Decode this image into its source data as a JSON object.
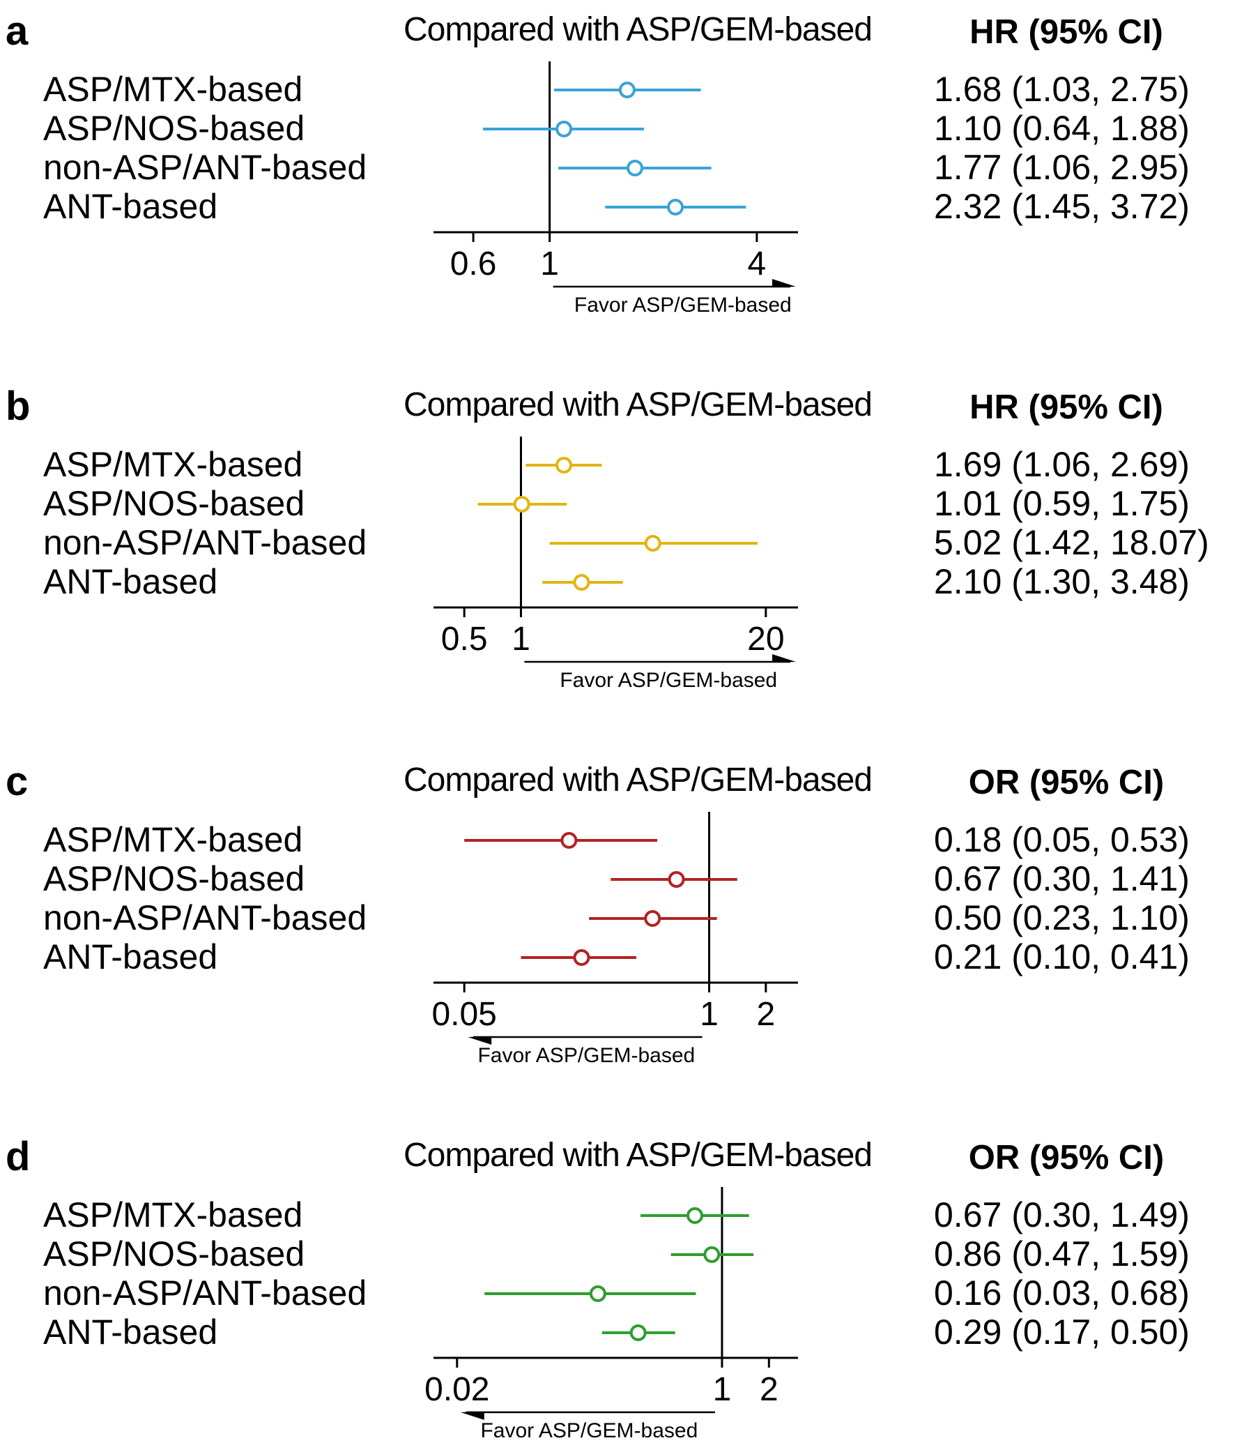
{
  "chart_data": [
    {
      "type": "forest",
      "panel_label": "a",
      "title": "Compared with ASP/GEM-based",
      "stat_header": "HR (95% CI)",
      "color": "#3aa3d6",
      "scale": "log",
      "xlim": [
        0.5,
        4.8
      ],
      "ticks": [
        0.6,
        1,
        4
      ],
      "tick_labels": [
        "0.6",
        "1",
        "4"
      ],
      "reference": 1,
      "favor_label": "Favor ASP/GEM-based",
      "favor_direction": "right",
      "categories": [
        "ASP/MTX-based",
        "ASP/NOS-based",
        "non-ASP/ANT-based",
        "ANT-based"
      ],
      "estimates": [
        1.68,
        1.1,
        1.77,
        2.32
      ],
      "lower": [
        1.03,
        0.64,
        1.06,
        1.45
      ],
      "upper": [
        2.75,
        1.88,
        2.95,
        3.72
      ],
      "stat_text": [
        "1.68 (1.03, 2.75)",
        "1.10 (0.64, 1.88)",
        "1.77 (1.06, 2.95)",
        "2.32 (1.45, 3.72)"
      ]
    },
    {
      "type": "forest",
      "panel_label": "b",
      "title": "Compared with ASP/GEM-based",
      "stat_header": "HR (95% CI)",
      "color": "#e3b412",
      "scale": "log",
      "xlim": [
        0.4,
        25
      ],
      "ticks": [
        0.5,
        1,
        20
      ],
      "tick_labels": [
        "0.5",
        "1",
        "20"
      ],
      "reference": 1,
      "favor_label": "Favor ASP/GEM-based",
      "favor_direction": "right",
      "categories": [
        "ASP/MTX-based",
        "ASP/NOS-based",
        "non-ASP/ANT-based",
        "ANT-based"
      ],
      "estimates": [
        1.69,
        1.01,
        5.02,
        2.1
      ],
      "lower": [
        1.06,
        0.59,
        1.42,
        1.3
      ],
      "upper": [
        2.69,
        1.75,
        18.07,
        3.48
      ],
      "stat_text": [
        "1.69 (1.06, 2.69)",
        "1.01 (0.59, 1.75)",
        "5.02 (1.42, 18.07)",
        "2.10 (1.30, 3.48)"
      ]
    },
    {
      "type": "forest",
      "panel_label": "c",
      "title": "Compared with ASP/GEM-based",
      "stat_header": "OR (95% CI)",
      "color": "#b22222",
      "scale": "log",
      "xlim": [
        0.04,
        2.5
      ],
      "ticks": [
        0.05,
        1,
        2
      ],
      "tick_labels": [
        "0.05",
        "1",
        "2"
      ],
      "reference": 1,
      "favor_label": "Favor ASP/GEM-based",
      "favor_direction": "left",
      "categories": [
        "ASP/MTX-based",
        "ASP/NOS-based",
        "non-ASP/ANT-based",
        "ANT-based"
      ],
      "estimates": [
        0.18,
        0.67,
        0.5,
        0.21
      ],
      "lower": [
        0.05,
        0.3,
        0.23,
        0.1
      ],
      "upper": [
        0.53,
        1.41,
        1.1,
        0.41
      ],
      "stat_text": [
        "0.18 (0.05, 0.53)",
        "0.67 (0.30, 1.41)",
        "0.50 (0.23, 1.10)",
        "0.21 (0.10, 0.41)"
      ]
    },
    {
      "type": "forest",
      "panel_label": "d",
      "title": "Compared with ASP/GEM-based",
      "stat_header": "OR (95% CI)",
      "color": "#2e9e2e",
      "scale": "log",
      "xlim": [
        0.017,
        2.5
      ],
      "ticks": [
        0.02,
        1,
        2
      ],
      "tick_labels": [
        "0.02",
        "1",
        "2"
      ],
      "reference": 1,
      "favor_label": "Favor ASP/GEM-based",
      "favor_direction": "left",
      "categories": [
        "ASP/MTX-based",
        "ASP/NOS-based",
        "non-ASP/ANT-based",
        "ANT-based"
      ],
      "estimates": [
        0.67,
        0.86,
        0.16,
        0.29
      ],
      "lower": [
        0.3,
        0.47,
        0.03,
        0.17
      ],
      "upper": [
        1.49,
        1.59,
        0.68,
        0.5
      ],
      "stat_text": [
        "0.67 (0.30, 1.49)",
        "0.86 (0.47, 1.59)",
        "0.16 (0.03, 0.68)",
        "0.29 (0.17, 0.50)"
      ]
    }
  ]
}
